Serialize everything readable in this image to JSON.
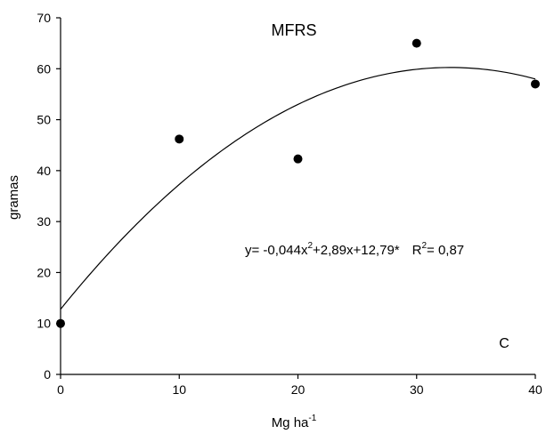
{
  "chart_data": {
    "type": "scatter",
    "title": "MFRS",
    "xlabel": "Mg ha",
    "xlabel_sup": "-1",
    "ylabel": "gramas",
    "xlim": [
      0,
      40
    ],
    "ylim": [
      0,
      70
    ],
    "x_ticks": [
      "0",
      "10",
      "20",
      "30",
      "40"
    ],
    "y_ticks": [
      "0",
      "10",
      "20",
      "30",
      "40",
      "50",
      "60",
      "70"
    ],
    "grid": false,
    "legend": "none",
    "series": [
      {
        "x": [
          0,
          10,
          20,
          30,
          40
        ],
        "y": [
          10.0,
          46.2,
          42.3,
          65.0,
          57.0
        ]
      }
    ],
    "fit": {
      "type": "quadratic",
      "a": -0.044,
      "b": 2.89,
      "c": 12.79
    },
    "annotation": {
      "eq_part1": "y= -0,044x",
      "eq_sup1": "2",
      "eq_part2": "+2,89x+12,79*",
      "r2_label": "R",
      "r2_sup": "2",
      "r2_value": "= 0,87"
    },
    "panel_label": "C",
    "colors": {
      "marker": "#000000",
      "line": "#000000",
      "axis": "#000000"
    }
  }
}
